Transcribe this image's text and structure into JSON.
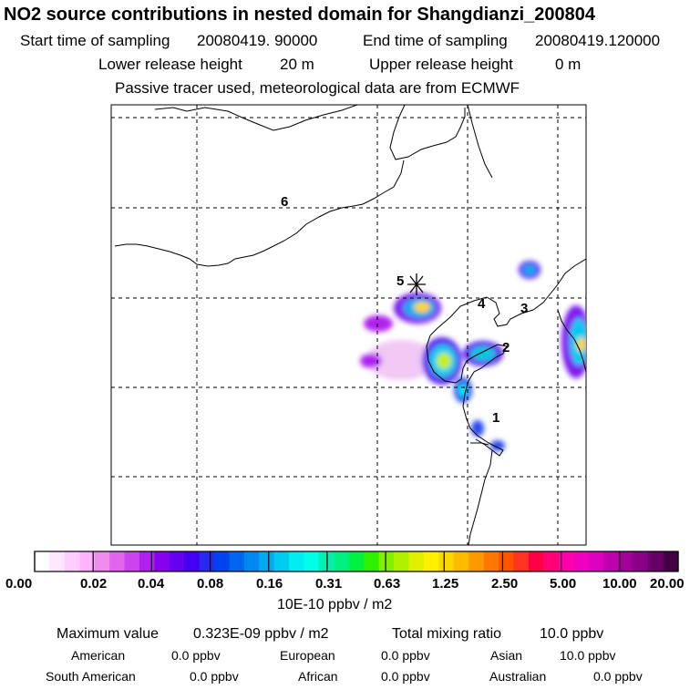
{
  "header": {
    "title": "NO2 source contributions in nested domain for Shangdianzi_200804",
    "start_label": "Start time of sampling",
    "start_value": "20080419. 90000",
    "end_label": "End time of sampling",
    "end_value": "20080419.120000",
    "lower_label": "Lower release height",
    "lower_value": "20 m",
    "upper_label": "Upper release height",
    "upper_value": "0 m",
    "note": "Passive tracer used, meteorological data are from ECMWF"
  },
  "map": {
    "site_markers": [
      "1",
      "2",
      "3",
      "4",
      "5",
      "6"
    ],
    "receptor_icon": "asterisk-icon"
  },
  "colorbar": {
    "tick_labels": [
      "0.00",
      "0.02",
      "0.04",
      "0.08",
      "0.16",
      "0.31",
      "0.63",
      "1.25",
      "2.50",
      "5.00",
      "10.00",
      "20.00"
    ],
    "unit": "10E-10 ppbv / m2",
    "colors": [
      "#ffffff",
      "#ffe6ff",
      "#ffccff",
      "#ffb3ff",
      "#f08cf0",
      "#e066f0",
      "#cc44f0",
      "#b020f0",
      "#8800f0",
      "#6600f0",
      "#4400f0",
      "#2828f0",
      "#0044f0",
      "#0066f0",
      "#0088f0",
      "#00aaf0",
      "#00ccf0",
      "#00eef0",
      "#00ffe6",
      "#00f0b0",
      "#00f080",
      "#00f040",
      "#30f000",
      "#80f000",
      "#b0f000",
      "#e0f000",
      "#fff000",
      "#ffd700",
      "#ffbb00",
      "#ff9900",
      "#ff7700",
      "#ff5500",
      "#ff3322",
      "#ff0044",
      "#ff0077",
      "#ff00aa",
      "#f000c0",
      "#dd00c0",
      "#c000b0",
      "#a00099",
      "#880088",
      "#660066",
      "#440044"
    ]
  },
  "footer": {
    "max_label": "Maximum value",
    "max_value": "0.323E-09 ppbv / m2",
    "total_label": "Total mixing ratio",
    "total_value": "10.0 ppbv",
    "regions": [
      {
        "name": "American",
        "value": "0.0 ppbv"
      },
      {
        "name": "European",
        "value": "0.0 ppbv"
      },
      {
        "name": "Asian",
        "value": "10.0 ppbv"
      },
      {
        "name": "South American",
        "value": "0.0 ppbv"
      },
      {
        "name": "African",
        "value": "0.0 ppbv"
      },
      {
        "name": "Australian",
        "value": "0.0 ppbv"
      }
    ]
  }
}
